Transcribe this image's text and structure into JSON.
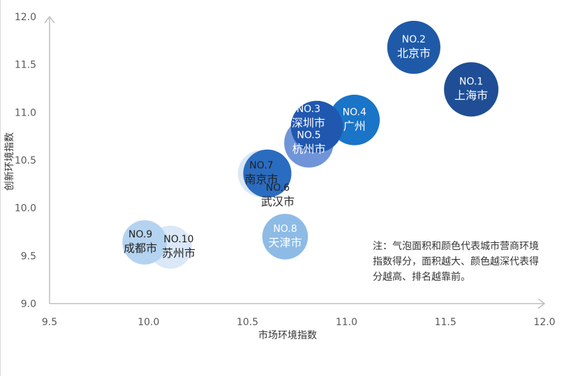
{
  "chart_data": {
    "type": "scatter",
    "title": "",
    "xlabel": "市场环境指数",
    "ylabel": "创新环境指数",
    "xlim": [
      9.5,
      12.0
    ],
    "ylim": [
      9.0,
      12.0
    ],
    "xticks": [
      "9.5",
      "10.0",
      "10.5",
      "11.0",
      "11.5",
      "12.0"
    ],
    "yticks": [
      "9.0",
      "9.5",
      "10.0",
      "10.5",
      "11.0",
      "11.5",
      "12.0"
    ],
    "grid": false,
    "legend": "none",
    "points": [
      {
        "rank": "NO.1",
        "city": "上海市",
        "x": 11.63,
        "y": 11.24,
        "size": 10,
        "color": "#1f4e96"
      },
      {
        "rank": "NO.2",
        "city": "北京市",
        "x": 11.34,
        "y": 11.68,
        "size": 9,
        "color": "#1f5aa8"
      },
      {
        "rank": "NO.3",
        "city": "深圳市",
        "x": 10.85,
        "y": 10.85,
        "size": 8,
        "color": "#2058b0"
      },
      {
        "rank": "NO.4",
        "city": "广州",
        "x": 11.04,
        "y": 10.92,
        "size": 7,
        "color": "#1a74c8"
      },
      {
        "rank": "NO.5",
        "city": "杭州市",
        "x": 10.81,
        "y": 10.68,
        "size": 6,
        "color": "#7094d8"
      },
      {
        "rank": "NO.6",
        "city": "武汉市",
        "x": 10.6,
        "y": 10.36,
        "size": 5,
        "color": "#2a6cc0"
      },
      {
        "rank": "NO.7",
        "city": "南京市",
        "x": 10.57,
        "y": 10.36,
        "size": 4,
        "color": "#dbe7f5"
      },
      {
        "rank": "NO.8",
        "city": "天津市",
        "x": 10.69,
        "y": 9.7,
        "size": 3,
        "color": "#8dbbe6"
      },
      {
        "rank": "NO.9",
        "city": "成都市",
        "x": 9.98,
        "y": 9.64,
        "size": 2,
        "color": "#b4d3f0"
      },
      {
        "rank": "NO.10",
        "city": "苏州市",
        "x": 10.11,
        "y": 9.59,
        "size": 1,
        "color": "#dae8f7"
      }
    ]
  },
  "note": "注：气泡面积和颜色代表城市营商环境指数得分，面积越大、颜色越深代表得分越高、排名越靠前。"
}
